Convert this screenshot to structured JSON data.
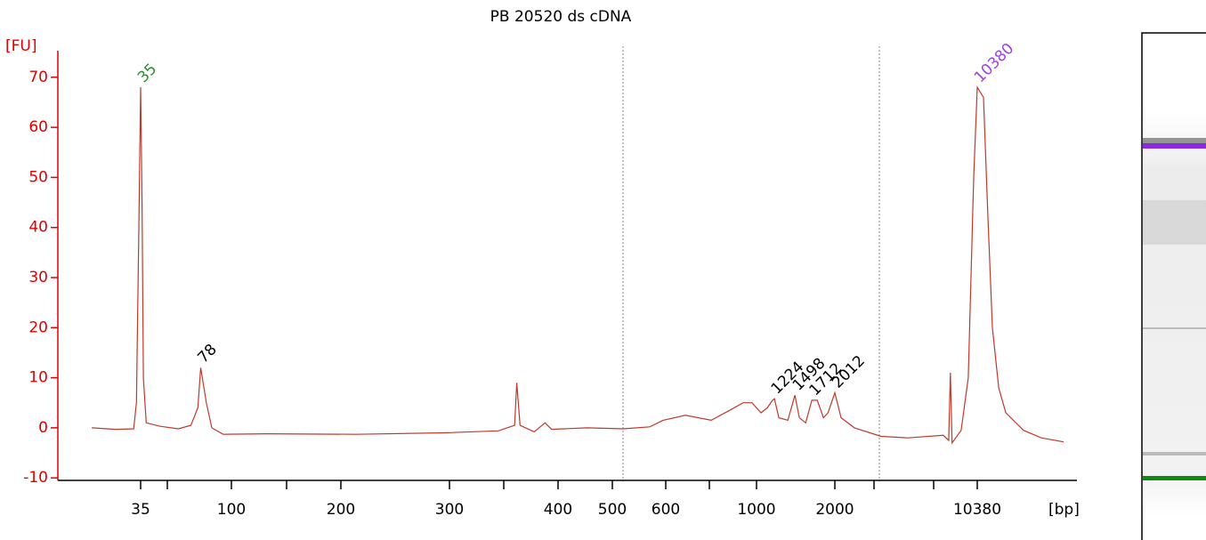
{
  "chart_data": {
    "type": "line",
    "title": "PB 20520 ds cDNA",
    "y_label": "[FU]",
    "x_label": "[bp]",
    "color": "#c0392b",
    "axis_color": "#e00000",
    "xlim": [
      0,
      15460
    ],
    "xticks": [
      35,
      100,
      200,
      300,
      400,
      500,
      600,
      1000,
      2000,
      10380
    ],
    "ylim": [
      -10.5,
      75.3
    ],
    "yticks": [
      -10,
      0,
      10,
      20,
      30,
      40,
      50,
      60,
      70
    ],
    "x": [
      0,
      17,
      30,
      32,
      33.7,
      35,
      36,
      37,
      39,
      49,
      62,
      71,
      76,
      78,
      82,
      86,
      94,
      133,
      214,
      296,
      345,
      360,
      362,
      365,
      378,
      388,
      394,
      454,
      520,
      570,
      595,
      686,
      800,
      882,
      941,
      980,
      1057,
      1137,
      1205,
      1228,
      1285,
      1400,
      1490,
      1547,
      1627,
      1707,
      1775,
      1855,
      1912,
      2000,
      2367,
      3150,
      4720,
      6290,
      8380,
      8700,
      8800,
      8900,
      9430,
      9850,
      10170,
      10380,
      10746,
      11010,
      11270,
      11640,
      12060,
      13100,
      14150,
      15460
    ],
    "values": [
      0,
      -0.3,
      -0.2,
      5,
      40,
      68,
      45,
      10,
      1,
      0.3,
      -0.2,
      0.5,
      4,
      12,
      5,
      0,
      -1.3,
      -1.2,
      -1.3,
      -1,
      -0.6,
      0.5,
      9,
      0.5,
      -0.8,
      1,
      -0.3,
      0,
      -0.2,
      0.2,
      1.5,
      2.5,
      1.5,
      3.5,
      5,
      5,
      3,
      4,
      5.5,
      5.8,
      2,
      1.5,
      6.5,
      2,
      1,
      5.5,
      5.5,
      2,
      3,
      7,
      2,
      0,
      -1.7,
      -2,
      -1.5,
      -2.5,
      11,
      -3,
      -0.5,
      10,
      50,
      68,
      66,
      42,
      20,
      8,
      3,
      -0.5,
      -2,
      -2.8
    ],
    "peaks": [
      {
        "x": 35,
        "y": 68,
        "color": "#2e8b2e"
      },
      {
        "x": 78,
        "y": 12,
        "color": "#000000"
      },
      {
        "x": 1224,
        "y": 5.8,
        "color": "#000000"
      },
      {
        "x": 1498,
        "y": 6.5,
        "color": "#000000"
      },
      {
        "x": 1712,
        "y": 5.5,
        "color": "#000000"
      },
      {
        "x": 2012,
        "y": 7,
        "color": "#000000"
      },
      {
        "x": 10380,
        "y": 68,
        "color": "#a040e0"
      }
    ]
  }
}
